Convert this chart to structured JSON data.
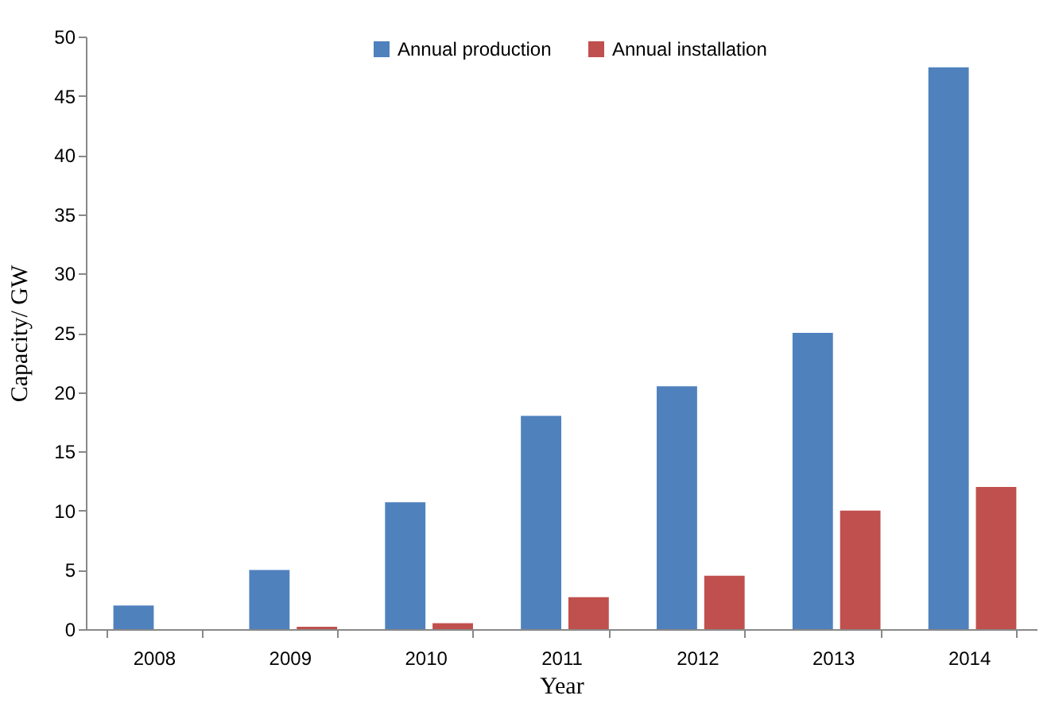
{
  "chart_data": {
    "type": "bar",
    "xlabel": "Year",
    "ylabel": "Capacity/ GW",
    "categories": [
      "2008",
      "2009",
      "2010",
      "2011",
      "2012",
      "2013",
      "2014"
    ],
    "series": [
      {
        "name": "Annual production",
        "color": "#4f81bd",
        "values": [
          2.0,
          5.0,
          10.7,
          18.0,
          20.5,
          25.0,
          47.4
        ]
      },
      {
        "name": "Annual installation",
        "color": "#c0504d",
        "values": [
          0,
          0.2,
          0.5,
          2.7,
          4.5,
          10.0,
          12.0
        ]
      }
    ],
    "ylim": [
      0,
      50
    ],
    "yticks": [
      0,
      5,
      10,
      15,
      20,
      25,
      30,
      35,
      40,
      45,
      50
    ],
    "grid": false,
    "legend": "top"
  }
}
